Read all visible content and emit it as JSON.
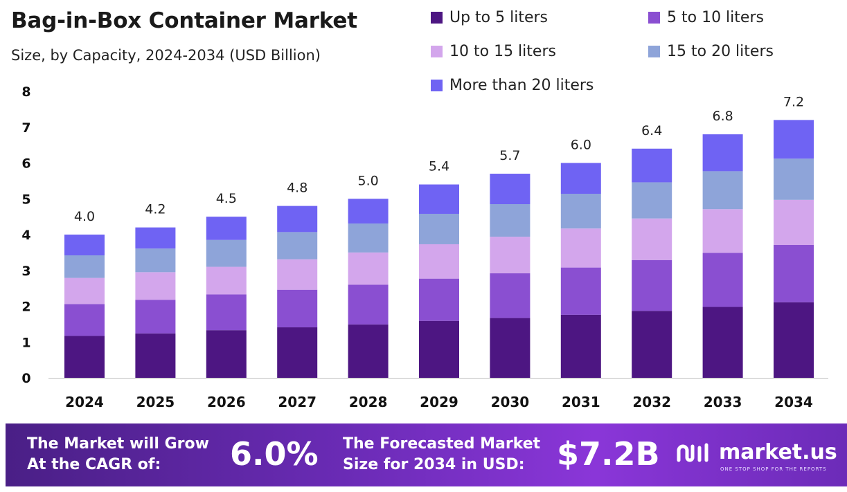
{
  "header": {
    "title": "Bag-in-Box Container Market",
    "subtitle": "Size, by Capacity, 2024-2034 (USD Billion)"
  },
  "colors": {
    "up_to_5": "#4d1682",
    "5_to_10": "#8a4fd1",
    "10_to_15": "#d3a6ec",
    "15_to_20": "#8ea4d9",
    "more_than_20": "#6f63f3",
    "footer": "#6a2bb5"
  },
  "chart_data": {
    "type": "bar",
    "stacked": true,
    "title": "Bag-in-Box Container Market",
    "subtitle": "Size, by Capacity, 2024-2034 (USD Billion)",
    "categories": [
      "2024",
      "2025",
      "2026",
      "2027",
      "2028",
      "2029",
      "2030",
      "2031",
      "2032",
      "2033",
      "2034"
    ],
    "totals": [
      "4.0",
      "4.2",
      "4.5",
      "4.8",
      "5.0",
      "5.4",
      "5.7",
      "6.0",
      "6.4",
      "6.8",
      "7.2"
    ],
    "y_ticks": [
      "0",
      "1",
      "2",
      "3",
      "4",
      "5",
      "6",
      "7",
      "8"
    ],
    "ylim": [
      0,
      8
    ],
    "grid": false,
    "legend_position": "top-right",
    "series": [
      {
        "name": "Up to 5 liters",
        "color": "#4d1682",
        "values": [
          1.17,
          1.24,
          1.33,
          1.41,
          1.49,
          1.59,
          1.67,
          1.76,
          1.87,
          1.98,
          2.11
        ]
      },
      {
        "name": "5 to 10 liters",
        "color": "#8a4fd1",
        "values": [
          0.89,
          0.94,
          1.0,
          1.05,
          1.11,
          1.18,
          1.25,
          1.32,
          1.42,
          1.51,
          1.6
        ]
      },
      {
        "name": "10 to 15 liters",
        "color": "#d3a6ec",
        "values": [
          0.73,
          0.77,
          0.77,
          0.85,
          0.9,
          0.96,
          1.02,
          1.09,
          1.16,
          1.22,
          1.26
        ]
      },
      {
        "name": "15 to 20 liters",
        "color": "#8ea4d9",
        "values": [
          0.63,
          0.66,
          0.75,
          0.76,
          0.81,
          0.85,
          0.91,
          0.97,
          1.01,
          1.06,
          1.15
        ]
      },
      {
        "name": "More than 20 liters",
        "color": "#6f63f3",
        "values": [
          0.58,
          0.59,
          0.65,
          0.73,
          0.69,
          0.82,
          0.85,
          0.86,
          0.94,
          1.03,
          1.08
        ]
      }
    ]
  },
  "footer": {
    "cagr_label_line1": "The Market will Grow",
    "cagr_label_line2": "At the CAGR of:",
    "cagr_value": "6.0%",
    "forecast_label_line1": "The Forecasted Market",
    "forecast_label_line2": "Size for 2034 in USD:",
    "forecast_value": "$7.2B",
    "brand_name": "market.us",
    "brand_tagline": "ONE STOP SHOP FOR THE REPORTS",
    "brand_icon": "market-us-logo-icon"
  }
}
